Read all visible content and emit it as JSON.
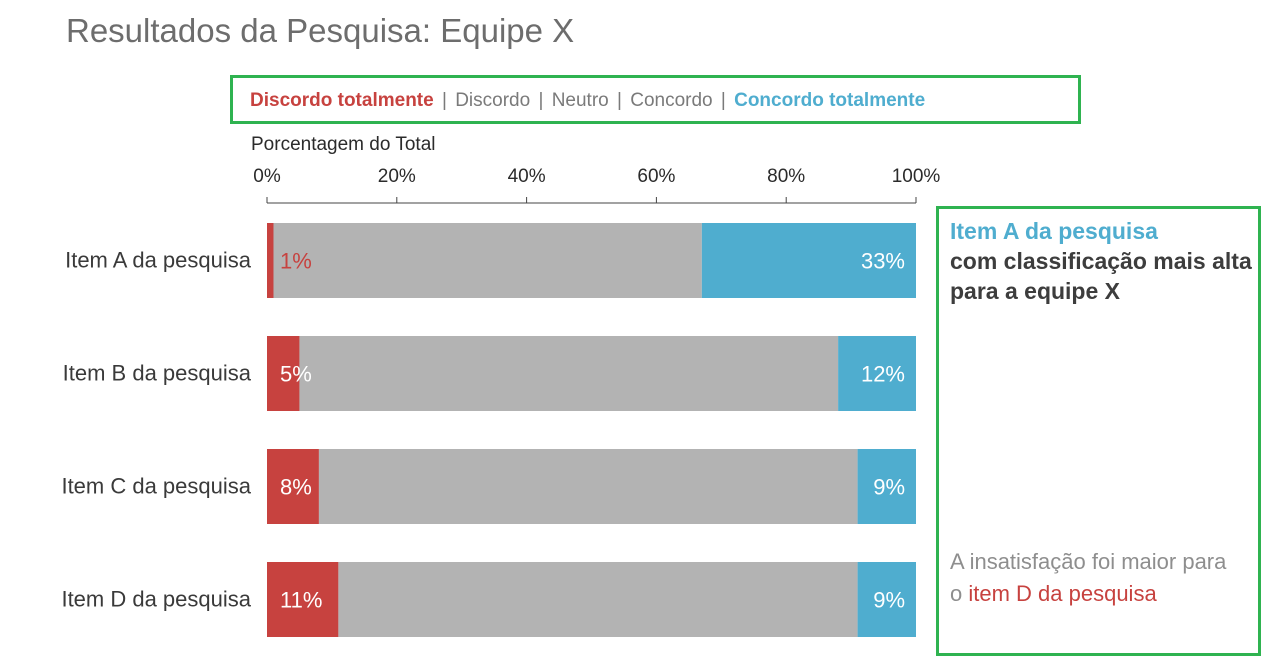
{
  "title": "Resultados da Pesquisa: Equipe X",
  "legend": {
    "neg": "Discordo totalmente",
    "mid1": "Discordo",
    "mid2": "Neutro",
    "mid3": "Concordo",
    "pos": "Concordo totalmente",
    "sep": "|"
  },
  "side_top": {
    "highlight": "Item A da pesquisa",
    "rest": "com classificação mais alta para a equipe X"
  },
  "side_bottom": {
    "text": "A insatisfação foi maior para o ",
    "highlight": "item D da pesquisa"
  },
  "colors": {
    "neg": "#c7423f",
    "mid": "#b3b3b3",
    "pos": "#4fadcf",
    "box": "#2fb350"
  },
  "chart_data": {
    "type": "bar",
    "orientation": "horizontal",
    "stacked": true,
    "xlabel": "Porcentagem do Total",
    "xlim": [
      0,
      100
    ],
    "ticks": [
      "0%",
      "20%",
      "40%",
      "60%",
      "80%",
      "100%"
    ],
    "categories": [
      "Item A da pesquisa",
      "Item B da pesquisa",
      "Item C da pesquisa",
      "Item D da pesquisa"
    ],
    "series": [
      {
        "name": "Discordo totalmente",
        "values": [
          1,
          5,
          8,
          11
        ],
        "labels": [
          "1%",
          "5%",
          "8%",
          "11%"
        ]
      },
      {
        "values": [
          66,
          83,
          83,
          80
        ]
      },
      {
        "name": "Concordo totalmente",
        "values": [
          33,
          12,
          9,
          9
        ],
        "labels": [
          "33%",
          "12%",
          "9%",
          "9%"
        ]
      }
    ]
  }
}
